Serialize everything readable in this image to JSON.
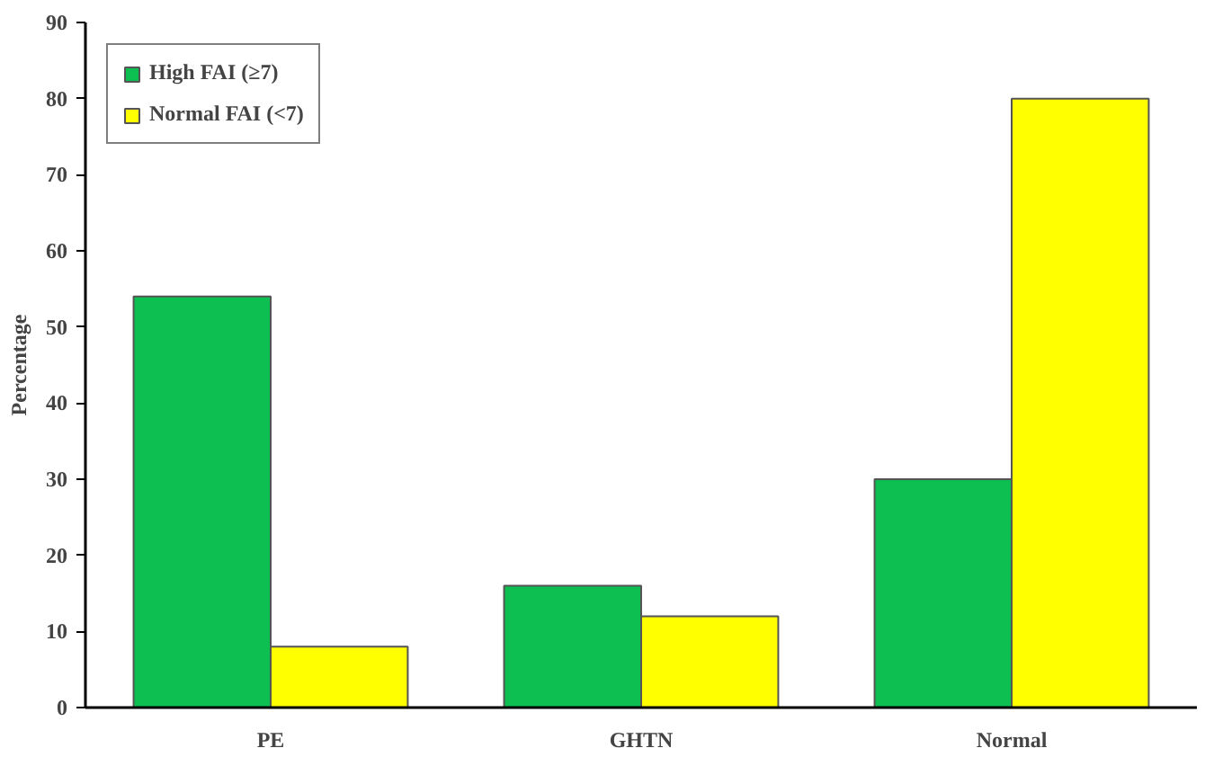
{
  "chart_data": {
    "type": "bar",
    "ylabel": "Percentage",
    "categories": [
      "PE",
      "GHTN",
      "Normal"
    ],
    "series": [
      {
        "name": "High FAI (≥7)",
        "color": "#0cbf50",
        "values": [
          54,
          16,
          30
        ]
      },
      {
        "name": "Normal FAI (<7)",
        "color": "#ffff00",
        "values": [
          8,
          12,
          80
        ]
      }
    ],
    "ylim": [
      0,
      90
    ],
    "yticks": [
      0,
      10,
      20,
      30,
      40,
      50,
      60,
      70,
      80,
      90
    ],
    "grid": false,
    "legend": "top left"
  }
}
